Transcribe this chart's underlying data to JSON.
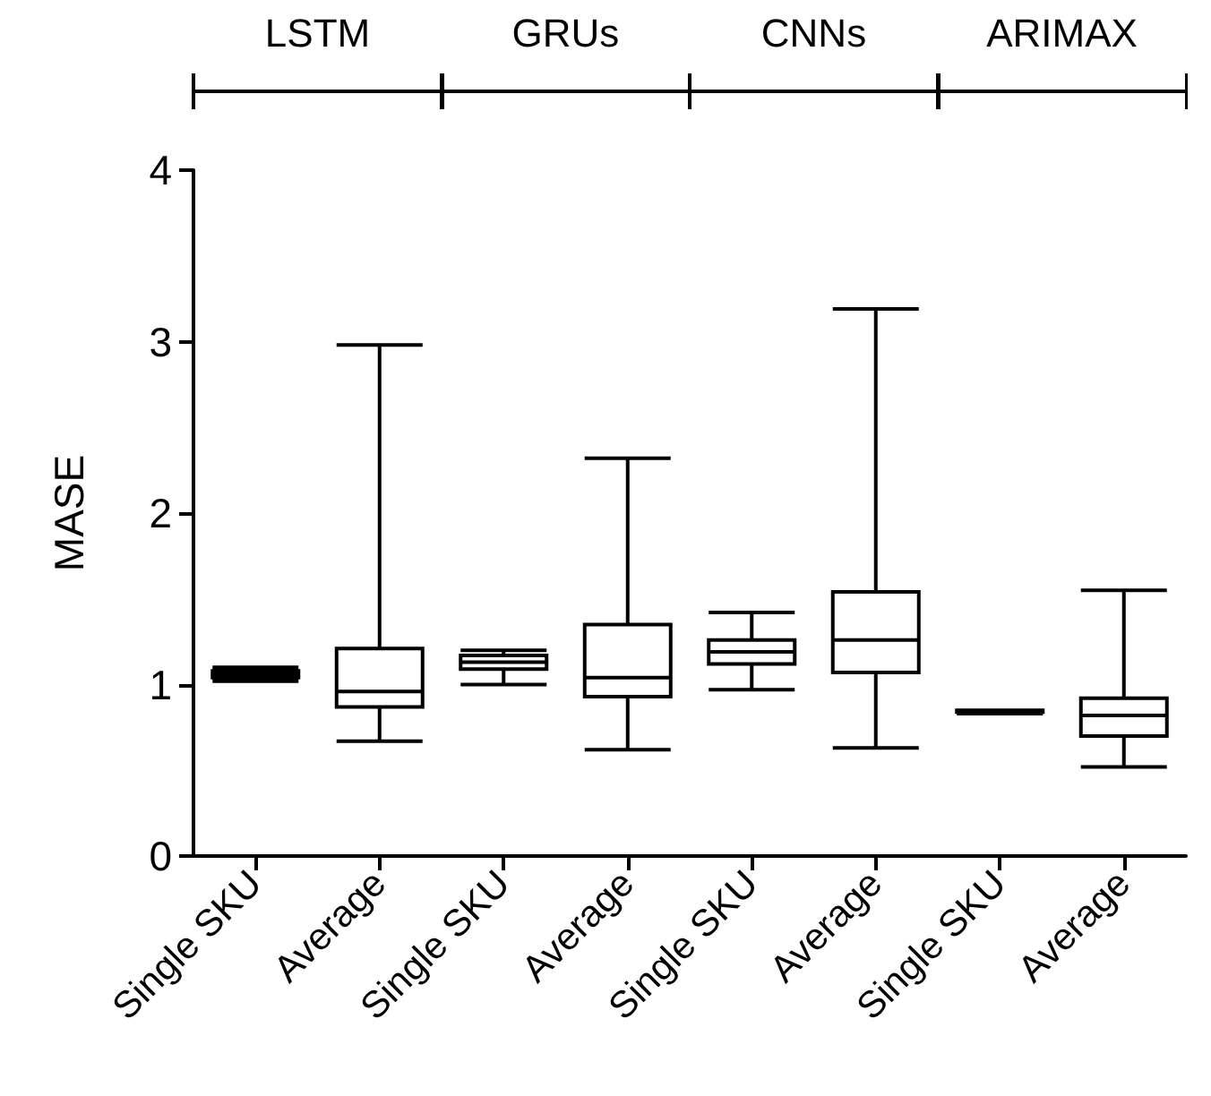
{
  "chart_data": {
    "type": "box",
    "ylabel": "MASE",
    "categories": [
      "Single SKU",
      "Average",
      "Single SKU",
      "Average",
      "Single SKU",
      "Average",
      "Single SKU",
      "Average"
    ],
    "boxes": [
      {
        "low": 1.02,
        "q1": 1.04,
        "median": 1.06,
        "q3": 1.08,
        "high": 1.1
      },
      {
        "low": 0.67,
        "q1": 0.87,
        "median": 0.96,
        "q3": 1.21,
        "high": 2.98
      },
      {
        "low": 1.0,
        "q1": 1.09,
        "median": 1.13,
        "q3": 1.17,
        "high": 1.2
      },
      {
        "low": 0.62,
        "q1": 0.93,
        "median": 1.04,
        "q3": 1.35,
        "high": 2.32
      },
      {
        "low": 0.97,
        "q1": 1.12,
        "median": 1.19,
        "q3": 1.26,
        "high": 1.42
      },
      {
        "low": 0.63,
        "q1": 1.07,
        "median": 1.26,
        "q3": 1.54,
        "high": 3.19
      },
      {
        "low": 0.83,
        "q1": 0.84,
        "median": 0.84,
        "q3": 0.85,
        "high": 0.85
      },
      {
        "low": 0.52,
        "q1": 0.7,
        "median": 0.82,
        "q3": 0.92,
        "high": 1.55
      }
    ],
    "color": "#000000",
    "annotations": [
      "LSTM",
      "GRUs",
      "CNNs",
      "ARIMAX"
    ],
    "ylim": [
      0,
      4
    ],
    "yticks": [
      0,
      1,
      2,
      3,
      4
    ],
    "grid": false
  }
}
